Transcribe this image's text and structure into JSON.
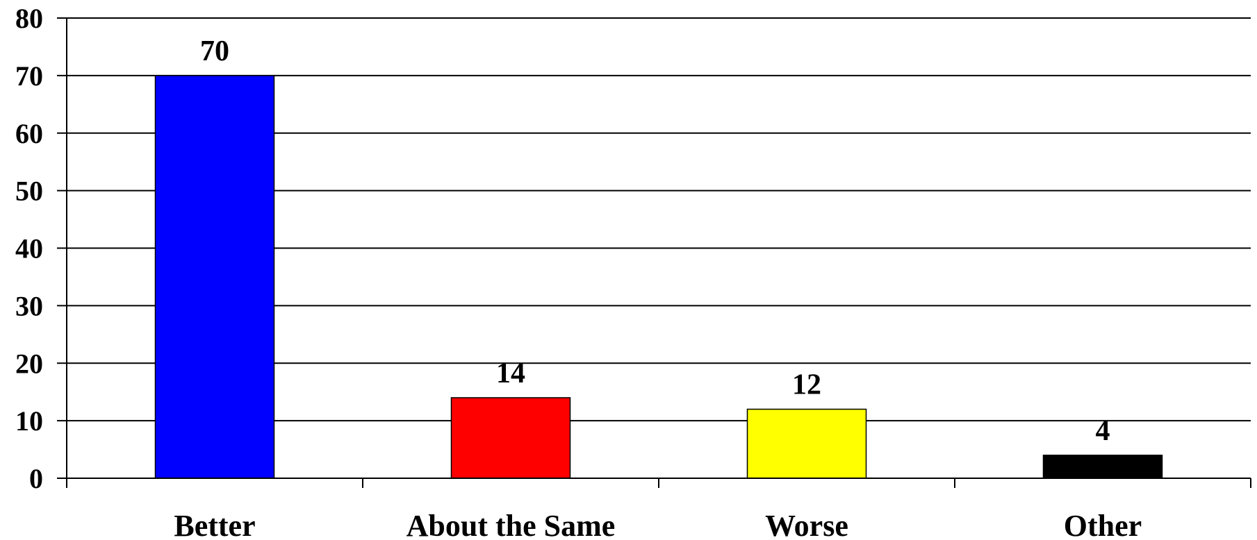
{
  "chart_data": {
    "type": "bar",
    "categories": [
      "Better",
      "About the Same",
      "Worse",
      "Other"
    ],
    "values": [
      70,
      14,
      12,
      4
    ],
    "data_labels": [
      "70",
      "14",
      "12",
      "4"
    ],
    "colors": [
      "#0000ff",
      "#ff0000",
      "#ffff00",
      "#000000"
    ],
    "title": "",
    "xlabel": "",
    "ylabel": "",
    "ylim": [
      0,
      80
    ],
    "yticks": [
      0,
      10,
      20,
      30,
      40,
      50,
      60,
      70,
      80
    ],
    "ytick_labels": [
      "0",
      "10",
      "20",
      "30",
      "40",
      "50",
      "60",
      "70",
      "80"
    ],
    "grid": true,
    "legend": "none"
  }
}
